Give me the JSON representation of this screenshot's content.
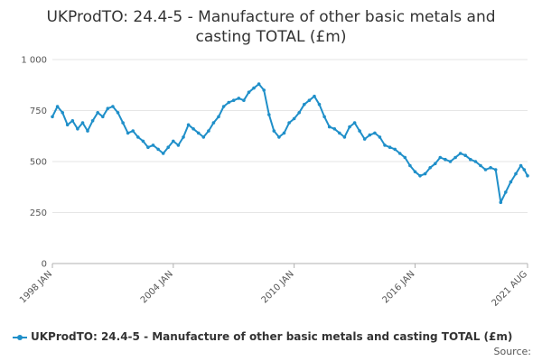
{
  "page_title_lines": [
    "UKProdTO: 24.4-5 - Manufacture of other basic metals and",
    "casting TOTAL (£m)"
  ],
  "source_label": "Source:",
  "colors": {
    "series": "#1f8fc9",
    "grid": "#e6e6e6",
    "axis": "#b0b0b0"
  },
  "chart_data": {
    "type": "line",
    "title": "UKProdTO: 24.4-5 - Manufacture of other basic metals and casting TOTAL (£m)",
    "xlabel": "",
    "ylabel": "",
    "xlim": [
      "1998-01",
      "2021-08"
    ],
    "ylim": [
      0,
      1000
    ],
    "y_ticks": [
      0,
      250,
      500,
      750,
      1000
    ],
    "y_tick_labels": [
      "0",
      "250",
      "500",
      "750",
      "1 000"
    ],
    "x_tick_labels": [
      {
        "date": "1998-01",
        "label": "1998 JAN"
      },
      {
        "date": "2004-01",
        "label": "2004 JAN"
      },
      {
        "date": "2010-01",
        "label": "2010 JAN"
      },
      {
        "date": "2016-01",
        "label": "2016 JAN"
      },
      {
        "date": "2021-08",
        "label": "2021 AUG"
      }
    ],
    "grid": true,
    "legend_position": "bottom",
    "series": [
      {
        "name": "UKProdTO: 24.4-5 - Manufacture of other basic metals and casting TOTAL (£m)",
        "points": [
          [
            "1998-01",
            720
          ],
          [
            "1998-04",
            770
          ],
          [
            "1998-07",
            740
          ],
          [
            "1998-10",
            680
          ],
          [
            "1999-01",
            700
          ],
          [
            "1999-04",
            660
          ],
          [
            "1999-07",
            690
          ],
          [
            "1999-10",
            650
          ],
          [
            "2000-01",
            700
          ],
          [
            "2000-04",
            740
          ],
          [
            "2000-07",
            720
          ],
          [
            "2000-10",
            760
          ],
          [
            "2001-01",
            770
          ],
          [
            "2001-04",
            740
          ],
          [
            "2001-07",
            690
          ],
          [
            "2001-10",
            640
          ],
          [
            "2002-01",
            650
          ],
          [
            "2002-04",
            620
          ],
          [
            "2002-07",
            600
          ],
          [
            "2002-10",
            570
          ],
          [
            "2003-01",
            580
          ],
          [
            "2003-04",
            560
          ],
          [
            "2003-07",
            540
          ],
          [
            "2003-10",
            570
          ],
          [
            "2004-01",
            600
          ],
          [
            "2004-04",
            580
          ],
          [
            "2004-07",
            620
          ],
          [
            "2004-10",
            680
          ],
          [
            "2005-01",
            660
          ],
          [
            "2005-04",
            640
          ],
          [
            "2005-07",
            620
          ],
          [
            "2005-10",
            650
          ],
          [
            "2006-01",
            690
          ],
          [
            "2006-04",
            720
          ],
          [
            "2006-07",
            770
          ],
          [
            "2006-10",
            790
          ],
          [
            "2007-01",
            800
          ],
          [
            "2007-04",
            810
          ],
          [
            "2007-07",
            800
          ],
          [
            "2007-10",
            840
          ],
          [
            "2008-01",
            860
          ],
          [
            "2008-04",
            880
          ],
          [
            "2008-07",
            850
          ],
          [
            "2008-10",
            730
          ],
          [
            "2009-01",
            650
          ],
          [
            "2009-04",
            620
          ],
          [
            "2009-07",
            640
          ],
          [
            "2009-10",
            690
          ],
          [
            "2010-01",
            710
          ],
          [
            "2010-04",
            740
          ],
          [
            "2010-07",
            780
          ],
          [
            "2010-10",
            800
          ],
          [
            "2011-01",
            820
          ],
          [
            "2011-04",
            780
          ],
          [
            "2011-07",
            720
          ],
          [
            "2011-10",
            670
          ],
          [
            "2012-01",
            660
          ],
          [
            "2012-04",
            640
          ],
          [
            "2012-07",
            620
          ],
          [
            "2012-10",
            670
          ],
          [
            "2013-01",
            690
          ],
          [
            "2013-04",
            650
          ],
          [
            "2013-07",
            610
          ],
          [
            "2013-10",
            630
          ],
          [
            "2014-01",
            640
          ],
          [
            "2014-04",
            620
          ],
          [
            "2014-07",
            580
          ],
          [
            "2014-10",
            570
          ],
          [
            "2015-01",
            560
          ],
          [
            "2015-04",
            540
          ],
          [
            "2015-07",
            520
          ],
          [
            "2015-10",
            480
          ],
          [
            "2016-01",
            450
          ],
          [
            "2016-04",
            430
          ],
          [
            "2016-07",
            440
          ],
          [
            "2016-10",
            470
          ],
          [
            "2017-01",
            490
          ],
          [
            "2017-04",
            520
          ],
          [
            "2017-07",
            510
          ],
          [
            "2017-10",
            500
          ],
          [
            "2018-01",
            520
          ],
          [
            "2018-04",
            540
          ],
          [
            "2018-07",
            530
          ],
          [
            "2018-10",
            510
          ],
          [
            "2019-01",
            500
          ],
          [
            "2019-04",
            480
          ],
          [
            "2019-07",
            460
          ],
          [
            "2019-10",
            470
          ],
          [
            "2020-01",
            460
          ],
          [
            "2020-04",
            300
          ],
          [
            "2020-07",
            350
          ],
          [
            "2020-10",
            400
          ],
          [
            "2021-01",
            440
          ],
          [
            "2021-04",
            480
          ],
          [
            "2021-06",
            460
          ],
          [
            "2021-08",
            430
          ]
        ]
      }
    ]
  }
}
